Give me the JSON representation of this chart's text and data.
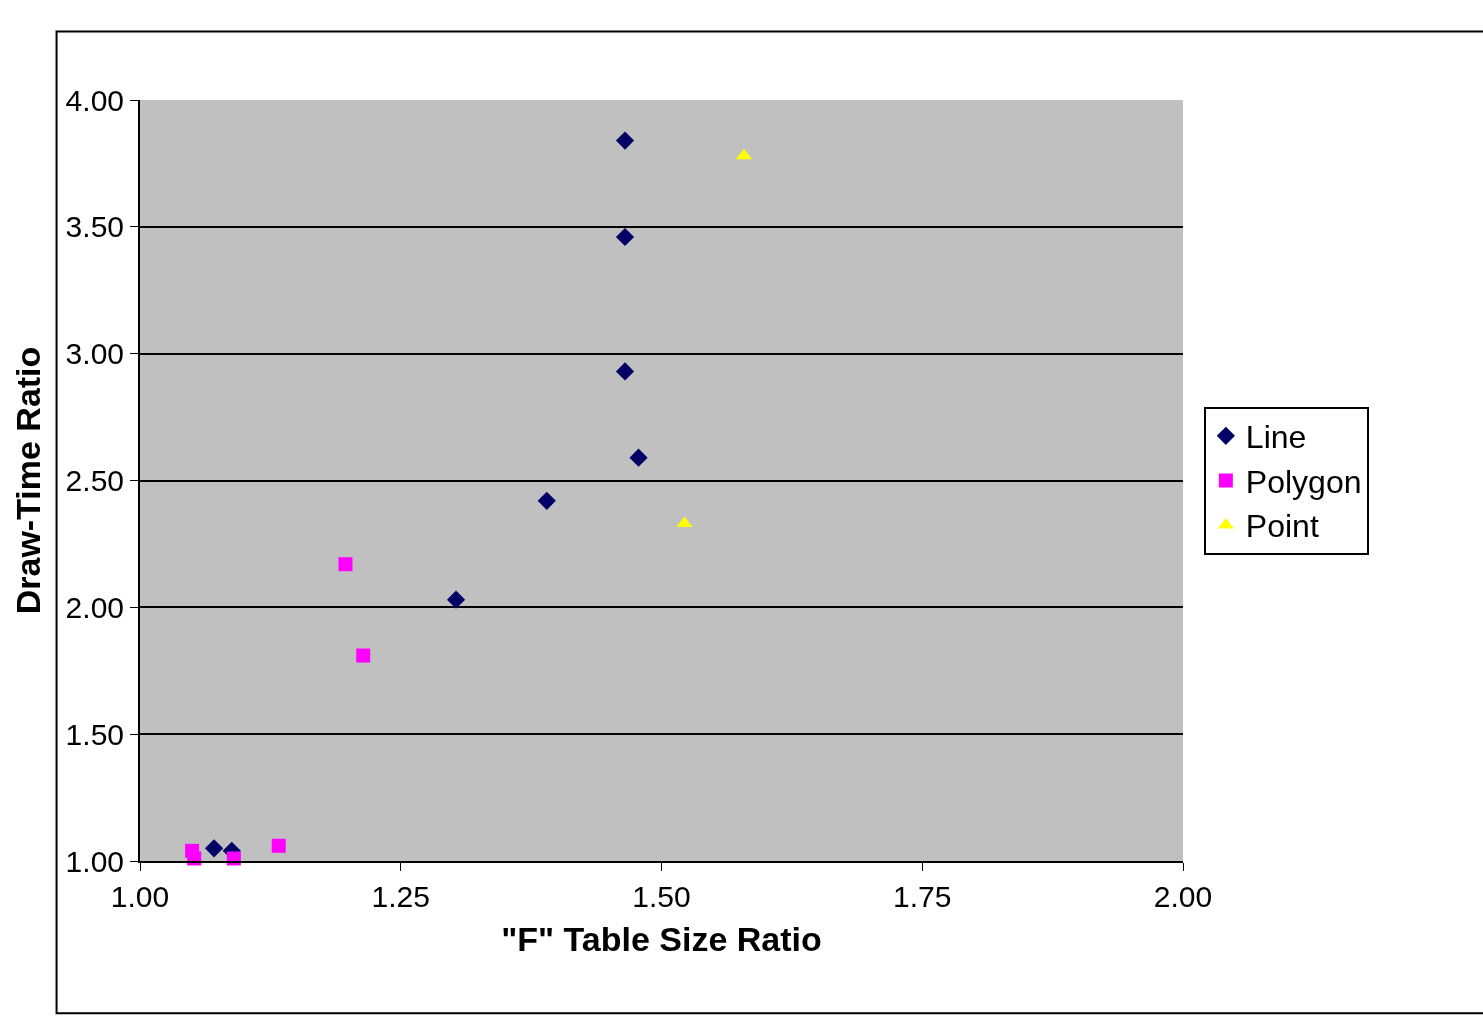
{
  "chart_data": {
    "type": "scatter",
    "xlabel": "\"F\" Table Size Ratio",
    "ylabel": "Draw-Time Ratio",
    "xlim": [
      1.0,
      2.0
    ],
    "xticks": [
      {
        "value": 1.0,
        "label": "1.00"
      },
      {
        "value": 1.25,
        "label": "1.25"
      },
      {
        "value": 1.5,
        "label": "1.50"
      },
      {
        "value": 1.75,
        "label": "1.75"
      },
      {
        "value": 2.0,
        "label": "2.00"
      }
    ],
    "ylim": [
      1.0,
      4.0
    ],
    "yticks": [
      {
        "value": 1.0,
        "label": "1.00"
      },
      {
        "value": 1.5,
        "label": "1.50"
      },
      {
        "value": 2.0,
        "label": "2.00"
      },
      {
        "value": 2.5,
        "label": "2.50"
      },
      {
        "value": 3.0,
        "label": "3.00"
      },
      {
        "value": 3.5,
        "label": "3.50"
      },
      {
        "value": 4.0,
        "label": "4.00"
      }
    ],
    "grid": "y",
    "legend": "right",
    "series": [
      {
        "name": "Line",
        "color": "#000066",
        "marker": "diamond",
        "x": [
          1.465,
          1.465,
          1.465,
          1.478,
          1.39,
          1.303,
          1.071,
          1.088
        ],
        "values": [
          3.84,
          3.46,
          2.93,
          2.59,
          2.42,
          2.03,
          1.05,
          1.04
        ]
      },
      {
        "name": "Polygon",
        "color": "#ff00ff",
        "marker": "square",
        "x": [
          1.197,
          1.214,
          1.133,
          1.05,
          1.052,
          1.09
        ],
        "values": [
          2.17,
          1.81,
          1.06,
          1.04,
          1.01,
          1.01
        ]
      },
      {
        "name": "Point",
        "color": "#ffff00",
        "marker": "triangle",
        "x": [
          1.579,
          1.522
        ],
        "values": [
          3.78,
          2.33
        ]
      }
    ]
  }
}
